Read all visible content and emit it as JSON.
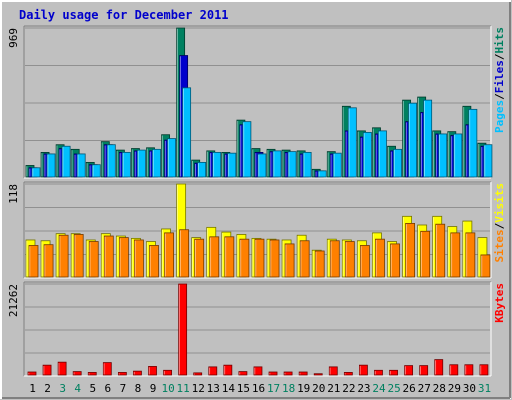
{
  "title": "Daily usage for December 2011",
  "colors": {
    "background": "#c0c0c0",
    "plot_bg": "#c0c0c0",
    "title": "#0000cc",
    "hits": "#008060",
    "files": "#0000cc",
    "pages": "#00c0ff",
    "visits": "#ffff00",
    "sites": "#ff8000",
    "kbytes": "#ff0000",
    "weekend_label": "#008060",
    "weekday_label": "#000000"
  },
  "chart_data": [
    {
      "type": "bar",
      "panel": "top",
      "ymax_label": "969",
      "ylim": [
        0,
        969
      ],
      "legend": [
        {
          "text": "Pages",
          "color": "#00c0ff"
        },
        {
          "text": "/",
          "color": "#000000"
        },
        {
          "text": "Files",
          "color": "#0000cc"
        },
        {
          "text": "/",
          "color": "#000000"
        },
        {
          "text": "Hits",
          "color": "#008060"
        }
      ],
      "categories": [
        "1",
        "2",
        "3",
        "4",
        "5",
        "6",
        "7",
        "8",
        "9",
        "10",
        "11",
        "12",
        "13",
        "14",
        "15",
        "16",
        "17",
        "18",
        "19",
        "20",
        "21",
        "22",
        "23",
        "24",
        "25",
        "26",
        "27",
        "28",
        "29",
        "30",
        "31"
      ],
      "series": [
        {
          "name": "Hits",
          "values": [
            75,
            160,
            210,
            180,
            95,
            230,
            175,
            185,
            190,
            275,
            969,
            110,
            170,
            160,
            370,
            185,
            180,
            175,
            170,
            50,
            165,
            460,
            300,
            320,
            200,
            500,
            520,
            300,
            295,
            460,
            220
          ]
        },
        {
          "name": "Files",
          "values": [
            60,
            150,
            185,
            150,
            80,
            210,
            160,
            170,
            170,
            240,
            790,
            90,
            160,
            150,
            340,
            160,
            165,
            160,
            150,
            40,
            150,
            300,
            260,
            280,
            170,
            360,
            420,
            280,
            270,
            340,
            200
          ]
        },
        {
          "name": "Pages",
          "values": [
            60,
            150,
            200,
            150,
            80,
            210,
            160,
            175,
            180,
            250,
            580,
            95,
            160,
            155,
            360,
            150,
            170,
            165,
            160,
            40,
            155,
            450,
            290,
            300,
            180,
            480,
            500,
            280,
            280,
            440,
            210
          ]
        }
      ]
    },
    {
      "type": "bar",
      "panel": "middle",
      "ymax_label": "118",
      "ylim": [
        0,
        118
      ],
      "legend": [
        {
          "text": "Sites",
          "color": "#ff8000"
        },
        {
          "text": "/",
          "color": "#000000"
        },
        {
          "text": "Visits",
          "color": "#ffff00"
        }
      ],
      "categories": [
        "1",
        "2",
        "3",
        "4",
        "5",
        "6",
        "7",
        "8",
        "9",
        "10",
        "11",
        "12",
        "13",
        "14",
        "15",
        "16",
        "17",
        "18",
        "19",
        "20",
        "21",
        "22",
        "23",
        "24",
        "25",
        "26",
        "27",
        "28",
        "29",
        "30",
        "31"
      ],
      "series": [
        {
          "name": "Visits",
          "values": [
            47,
            46,
            55,
            55,
            47,
            55,
            52,
            49,
            45,
            61,
            118,
            50,
            63,
            57,
            54,
            49,
            48,
            47,
            53,
            34,
            48,
            47,
            46,
            56,
            45,
            77,
            66,
            77,
            64,
            71,
            50
          ]
        },
        {
          "name": "Sites",
          "values": [
            40,
            41,
            53,
            54,
            45,
            52,
            50,
            47,
            40,
            56,
            60,
            48,
            51,
            51,
            48,
            48,
            47,
            42,
            46,
            33,
            46,
            45,
            40,
            48,
            42,
            68,
            58,
            67,
            56,
            56,
            28
          ]
        }
      ]
    },
    {
      "type": "bar",
      "panel": "bottom",
      "ymax_label": "21262",
      "ylim": [
        0,
        21262
      ],
      "legend": [
        {
          "text": "KBytes",
          "color": "#ff0000"
        }
      ],
      "categories": [
        "1",
        "2",
        "3",
        "4",
        "5",
        "6",
        "7",
        "8",
        "9",
        "10",
        "11",
        "12",
        "13",
        "14",
        "15",
        "16",
        "17",
        "18",
        "19",
        "20",
        "21",
        "22",
        "23",
        "24",
        "25",
        "26",
        "27",
        "28",
        "29",
        "30",
        "31"
      ],
      "series": [
        {
          "name": "KBytes",
          "values": [
            700,
            2300,
            3000,
            800,
            600,
            2900,
            600,
            900,
            2000,
            1100,
            21262,
            500,
            1900,
            2300,
            800,
            1900,
            700,
            700,
            700,
            300,
            1900,
            600,
            2300,
            1100,
            1100,
            2200,
            2200,
            3600,
            2400,
            2400,
            2400
          ]
        }
      ]
    }
  ],
  "x_labels": [
    "1",
    "2",
    "3",
    "4",
    "5",
    "6",
    "7",
    "8",
    "9",
    "10",
    "11",
    "12",
    "13",
    "14",
    "15",
    "16",
    "17",
    "18",
    "19",
    "20",
    "21",
    "22",
    "23",
    "24",
    "25",
    "26",
    "27",
    "28",
    "29",
    "30",
    "31"
  ],
  "weekend_days": [
    3,
    4,
    10,
    11,
    17,
    18,
    24,
    25,
    31
  ]
}
